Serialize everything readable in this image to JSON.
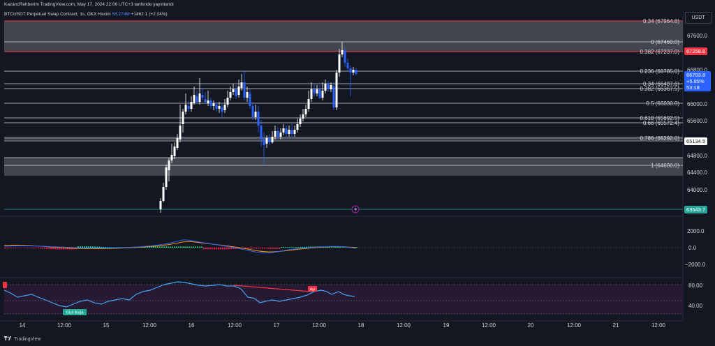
{
  "header": {
    "publish_text": "KazancRehberim TradingView.com, May 17, 2024 22:06 UTC+3 tarihinde yayınlandı"
  },
  "legend": {
    "symbol": "BTCUSDT Perpetual Swap Contract, 1s, OKX",
    "volume_label": "Hacim",
    "volume_value": "58.274M",
    "change": "+1462.1 (+2.24%)"
  },
  "axis": {
    "currency": "USDT",
    "price_ticks": [
      "67600.0",
      "66800.0",
      "66000.0",
      "65600.0",
      "64800.0",
      "64400.0",
      "64000.0"
    ],
    "macd_ticks": [
      "2000.0",
      "0.0",
      "−2000.0"
    ],
    "rsi_ticks": [
      "80.00",
      "40.00"
    ],
    "time_ticks": [
      "14",
      "12:00",
      "15",
      "12:00",
      "16",
      "12:00",
      "17",
      "12:00",
      "18",
      "12:00",
      "19",
      "12:00",
      "20",
      "12:00",
      "21",
      "12:00"
    ]
  },
  "fib_levels": [
    {
      "label": "0.34 (67964.8)"
    },
    {
      "label": "0 (67460.0)"
    },
    {
      "label": "0.382 (67237.0)"
    },
    {
      "label": "0.236 (66785.0)"
    },
    {
      "label": "0.34 (66487.6)"
    },
    {
      "label": "0.382 (66367.5)"
    },
    {
      "label": "0.5 (66030.0)"
    },
    {
      "label": "0.618 (65692.5)"
    },
    {
      "label": "0.66 (65572.4)"
    },
    {
      "label": "0.786 (65292.0)"
    },
    {
      "label": "1 (64600.0)"
    }
  ],
  "price_tags": {
    "red_tag": "67258.6",
    "current_price": "66703.8",
    "current_change": "+5.85%",
    "countdown": "53:18",
    "level_tag": "65134.5",
    "green_tag": "63543.7"
  },
  "rsi_labels": {
    "divergence_bear": "Ayı",
    "divergence_bull": "Gizli Boğa"
  },
  "footer": {
    "brand": "TradingView"
  },
  "colors": {
    "background": "#131722",
    "up": "#ffffff",
    "down": "#2962ff",
    "rsi_line": "#42a5f5",
    "divergence": "#f23645",
    "bull": "#22ab94"
  }
}
